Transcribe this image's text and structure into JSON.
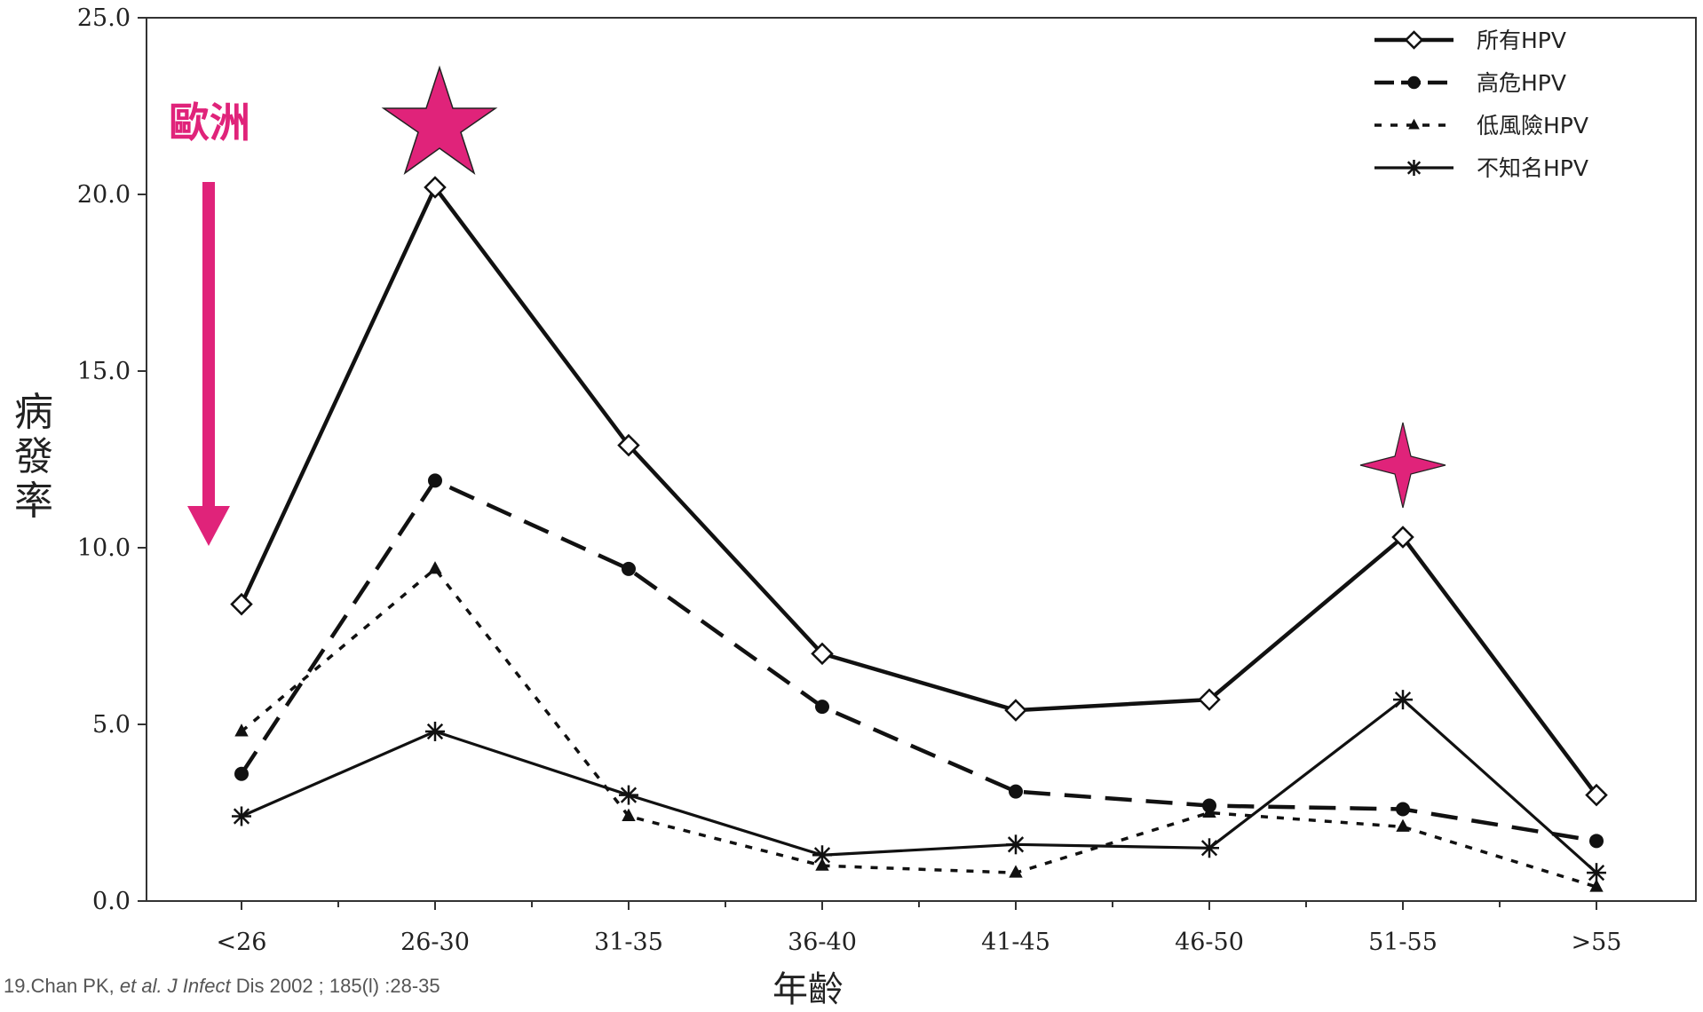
{
  "chart_data": {
    "type": "line",
    "ylabel": "病發率",
    "xlabel": "年齡",
    "categories": [
      "<26",
      "26-30",
      "31-35",
      "36-40",
      "41-45",
      "46-50",
      "51-55",
      ">55"
    ],
    "y_ticks": [
      "0.0",
      "5.0",
      "10.0",
      "15.0",
      "20.0",
      "25.0"
    ],
    "ylim": [
      0,
      25
    ],
    "legend_position": "top-right",
    "series": [
      {
        "name": "所有HPV",
        "marker": "diamond",
        "line": "solid",
        "values": [
          8.4,
          20.2,
          12.9,
          7.0,
          5.4,
          5.7,
          10.3,
          3.0
        ]
      },
      {
        "name": "高危HPV",
        "marker": "circle",
        "line": "dashed",
        "values": [
          3.6,
          11.9,
          9.4,
          5.5,
          3.1,
          2.7,
          2.6,
          1.7
        ]
      },
      {
        "name": "低風險HPV",
        "marker": "triangle",
        "line": "dotted",
        "values": [
          4.8,
          9.4,
          2.4,
          1.0,
          0.8,
          2.5,
          2.1,
          0.4
        ]
      },
      {
        "name": "不知名HPV",
        "marker": "asterisk",
        "line": "thin",
        "values": [
          2.4,
          4.8,
          3.0,
          1.3,
          1.6,
          1.5,
          5.7,
          0.8
        ]
      }
    ]
  },
  "annotations": {
    "region_label": "歐洲",
    "accent_color": "#e0237a",
    "markers": [
      "star-icon",
      "sparkle-star-icon",
      "down-arrow-icon"
    ]
  },
  "citation": {
    "prefix": "19.Chan PK, ",
    "italic1": "et al. J Infect",
    "suffix": " Dis 2002 ; 185(l) :28-35"
  }
}
